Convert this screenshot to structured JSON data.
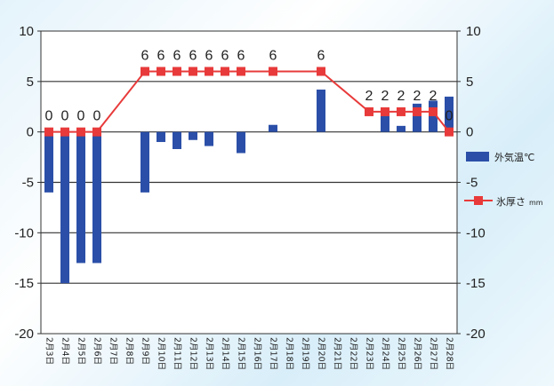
{
  "chart_data": {
    "type": "bar+line",
    "categories": [
      "2月3日",
      "2月4日",
      "2月5日",
      "2月6日",
      "2月7日",
      "2月8日",
      "2月9日",
      "2月10日",
      "2月11日",
      "2月12日",
      "2月13日",
      "2月14日",
      "2月15日",
      "2月16日",
      "2月17日",
      "2月18日",
      "2月19日",
      "2月20日",
      "2月21日",
      "2月22日",
      "2月23日",
      "2月24日",
      "2月25日",
      "2月26日",
      "2月27日",
      "2月28日"
    ],
    "series": [
      {
        "name": "外気温℃",
        "type": "bar",
        "color": "#2b4fa8",
        "axis": "left",
        "values": [
          -6.0,
          -15.0,
          -13.0,
          -13.0,
          null,
          null,
          -6.0,
          -1.0,
          -1.7,
          -0.8,
          -1.4,
          null,
          -2.1,
          null,
          0.7,
          null,
          null,
          4.2,
          null,
          null,
          null,
          1.6,
          0.6,
          2.8,
          3.1,
          3.5
        ]
      },
      {
        "name": "氷厚さ",
        "unit": "mm",
        "type": "line",
        "color": "#e83a3a",
        "axis": "right",
        "values": [
          0,
          0,
          0,
          0,
          null,
          null,
          6,
          6,
          6,
          6,
          6,
          6,
          6,
          null,
          6,
          null,
          null,
          6,
          null,
          null,
          2,
          2,
          2,
          2,
          2,
          0
        ],
        "data_labels": [
          "0",
          "0",
          "0",
          "0",
          "",
          "",
          "6",
          "6",
          "6",
          "6",
          "6",
          "6",
          "6",
          "",
          "6",
          "",
          "",
          "6",
          "",
          "",
          "2",
          "2",
          "2",
          "2",
          "2",
          "0"
        ]
      }
    ],
    "ylim": [
      -20,
      10
    ],
    "y2lim": [
      -20,
      10
    ],
    "yticks": [
      "10",
      "5",
      "0",
      "-5",
      "-10",
      "-15",
      "-20"
    ],
    "y2ticks": [
      "10",
      "5",
      "0",
      "-5",
      "-10",
      "-15",
      "-20"
    ],
    "grid": "horizontal",
    "legend_placement": "right-middle"
  }
}
